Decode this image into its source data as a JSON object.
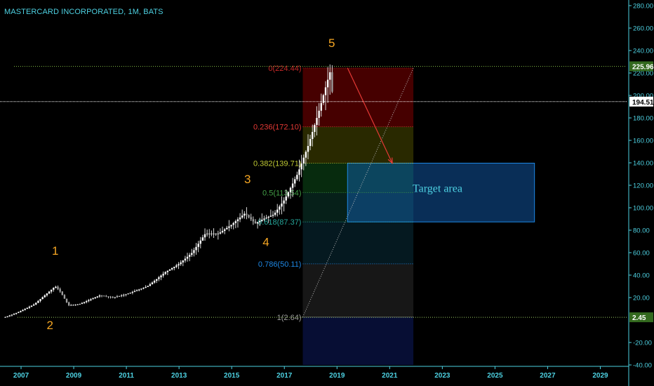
{
  "header": {
    "title": "MASTERCARD INCORPORATED, 1M, BATS"
  },
  "colors": {
    "background": "#000000",
    "axis_text": "#4dd0e1",
    "wave_label": "#f5a623",
    "candle": "#d8d8d8",
    "trend_arrow": "#e53935",
    "target_text": "#4dd0e1",
    "target_fill": "#1565c0"
  },
  "chart_data": {
    "type": "candlestick",
    "symbol": "MASTERCARD INCORPORATED",
    "interval": "1M",
    "exchange": "BATS",
    "x_range": [
      2006.2,
      2030.0
    ],
    "ylim": [
      -40,
      285
    ],
    "x_tick_labels": [
      "2007",
      "2009",
      "2011",
      "2013",
      "2015",
      "2017",
      "2019",
      "2021",
      "2023",
      "2025",
      "2027",
      "2029"
    ],
    "y_tick_labels": [
      "280.00",
      "260.00",
      "240.00",
      "220.00",
      "200.00",
      "180.00",
      "160.00",
      "140.00",
      "120.00",
      "100.00",
      "80.00",
      "60.00",
      "40.00",
      "20.00",
      "-20.00",
      "-40.00"
    ],
    "price_path": [
      [
        2006.4,
        2.6
      ],
      [
        2006.9,
        7
      ],
      [
        2007.5,
        14
      ],
      [
        2007.9,
        22
      ],
      [
        2008.3,
        30
      ],
      [
        2008.5,
        25
      ],
      [
        2008.8,
        13
      ],
      [
        2009.2,
        14
      ],
      [
        2010.0,
        22
      ],
      [
        2010.5,
        20
      ],
      [
        2011.0,
        23
      ],
      [
        2011.8,
        30
      ],
      [
        2012.5,
        43
      ],
      [
        2013.0,
        50
      ],
      [
        2013.5,
        60
      ],
      [
        2014.0,
        77
      ],
      [
        2014.5,
        77
      ],
      [
        2015.0,
        85
      ],
      [
        2015.5,
        95
      ],
      [
        2015.9,
        86
      ],
      [
        2016.2,
        90
      ],
      [
        2016.6,
        94
      ],
      [
        2017.0,
        107
      ],
      [
        2017.5,
        130
      ],
      [
        2017.9,
        155
      ],
      [
        2018.3,
        185
      ],
      [
        2018.6,
        210
      ],
      [
        2018.75,
        222
      ],
      [
        2018.85,
        194
      ]
    ],
    "last_price": {
      "label": "194.51",
      "value": 194.51
    },
    "high_marker": {
      "label": "225.96",
      "value": 225.96
    },
    "low_marker": {
      "label": "2.45",
      "value": 2.45
    },
    "fib_levels": [
      {
        "label": "0(224.44)",
        "value": 224.44,
        "color": "#c62828"
      },
      {
        "label": "0.236(172.10)",
        "value": 172.1,
        "color": "#e53935"
      },
      {
        "label": "0.382(139.71)",
        "value": 139.71,
        "color": "#c0ca33"
      },
      {
        "label": "0.5(113.54)",
        "value": 113.54,
        "color": "#43a047"
      },
      {
        "label": "0.618(87.37)",
        "value": 87.37,
        "color": "#26a69a"
      },
      {
        "label": "0.786(50.11)",
        "value": 50.11,
        "color": "#1e88e5"
      },
      {
        "label": "1(2.64)",
        "value": 2.64,
        "color": "#9e9e9e"
      }
    ],
    "fib_zones": [
      {
        "from": 224.44,
        "to": 172.1,
        "color": "#7f0000"
      },
      {
        "from": 172.1,
        "to": 139.71,
        "color": "#4a4a00"
      },
      {
        "from": 139.71,
        "to": 113.54,
        "color": "#0d4f1a"
      },
      {
        "from": 113.54,
        "to": 87.37,
        "color": "#0b3a2e"
      },
      {
        "from": 87.37,
        "to": 50.11,
        "color": "#0a2e3a"
      },
      {
        "from": 50.11,
        "to": 2.64,
        "color": "#2a2a2a"
      },
      {
        "from": 2.64,
        "to": -40,
        "color": "#0d1a5e"
      }
    ],
    "fib_x_range": [
      2017.7,
      2021.9
    ],
    "fib_diagonal": {
      "from": [
        2017.7,
        2.64
      ],
      "to": [
        2021.9,
        224.44
      ]
    },
    "target_area": {
      "label": "Target area",
      "x_from": 2019.4,
      "x_to": 2026.5,
      "y_from": 87.37,
      "y_to": 139.71
    },
    "arrow": {
      "from": [
        2019.4,
        224.44
      ],
      "to": [
        2021.1,
        139.71
      ]
    },
    "wave_labels": [
      {
        "text": "1",
        "x": 2008.3,
        "y": 58
      },
      {
        "text": "2",
        "x": 2008.1,
        "y": -8
      },
      {
        "text": "3",
        "x": 2015.6,
        "y": 122
      },
      {
        "text": "4",
        "x": 2016.3,
        "y": 66
      },
      {
        "text": "5",
        "x": 2018.8,
        "y": 243
      }
    ]
  }
}
